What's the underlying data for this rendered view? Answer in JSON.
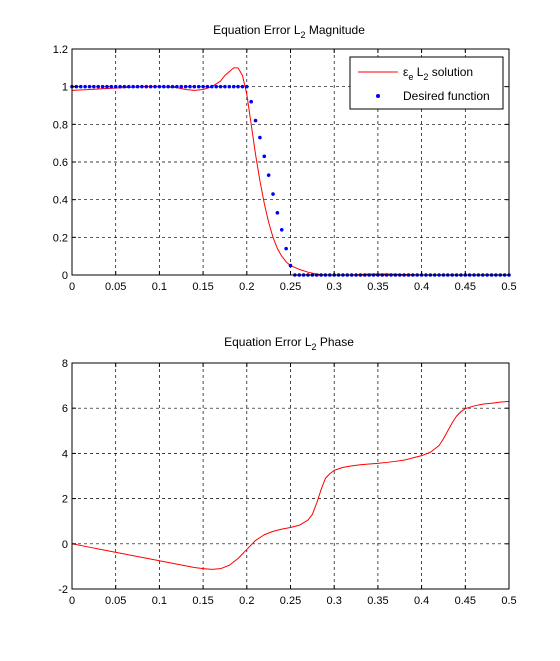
{
  "colors": {
    "solution": "#ff0000",
    "desired": "#0000ff",
    "axes": "#000000",
    "grid": "#000000",
    "background": "#ffffff"
  },
  "chart_data": [
    {
      "type": "line",
      "title": "Equation Error L2 Magnitude",
      "title_main": "Equation Error L",
      "title_sub": "2",
      "title_rest": " Magnitude",
      "xlabel": "",
      "ylabel": "",
      "xlim": [
        0,
        0.5
      ],
      "ylim": [
        0,
        1.2
      ],
      "xticks": [
        0,
        0.05,
        0.1,
        0.15,
        0.2,
        0.25,
        0.3,
        0.35,
        0.4,
        0.45,
        0.5
      ],
      "xtick_labels": [
        "0",
        "0.05",
        "0.1",
        "0.15",
        "0.2",
        "0.25",
        "0.3",
        "0.35",
        "0.4",
        "0.45",
        "0.5"
      ],
      "yticks": [
        0,
        0.2,
        0.4,
        0.6,
        0.8,
        1,
        1.2
      ],
      "ytick_labels": [
        "0",
        "0.2",
        "0.4",
        "0.6",
        "0.8",
        "1",
        "1.2"
      ],
      "grid": true,
      "grid_style": "dashed",
      "legend_position": "top-right",
      "legend": [
        {
          "main": "ε",
          "sub": "e",
          "rest1": " L",
          "sub2": "2",
          "rest2": " solution",
          "marker": "line"
        },
        {
          "main": "Desired function",
          "marker": "dot"
        }
      ],
      "series": [
        {
          "name": "εe L2 solution",
          "style": "line",
          "x": [
            0,
            0.02,
            0.04,
            0.06,
            0.08,
            0.1,
            0.12,
            0.13,
            0.14,
            0.15,
            0.16,
            0.17,
            0.175,
            0.18,
            0.185,
            0.19,
            0.195,
            0.2,
            0.205,
            0.21,
            0.215,
            0.22,
            0.225,
            0.23,
            0.235,
            0.24,
            0.245,
            0.25,
            0.26,
            0.27,
            0.28,
            0.29,
            0.3,
            0.32,
            0.34,
            0.36,
            0.38,
            0.4,
            0.42,
            0.44,
            0.46,
            0.48,
            0.5
          ],
          "y": [
            0.98,
            0.985,
            0.99,
            0.995,
            1.0,
            1.0,
            0.995,
            0.985,
            0.98,
            0.985,
            1.0,
            1.03,
            1.06,
            1.08,
            1.1,
            1.1,
            1.06,
            0.96,
            0.8,
            0.64,
            0.5,
            0.38,
            0.28,
            0.2,
            0.14,
            0.1,
            0.07,
            0.05,
            0.03,
            0.015,
            0.005,
            0.0,
            0.0,
            0.0,
            0.005,
            0.005,
            0.003,
            0.0,
            0.0,
            0.0,
            0.0,
            0.0,
            0.0
          ]
        },
        {
          "name": "Desired function",
          "style": "dots",
          "x": [
            0.0,
            0.005,
            0.01,
            0.015,
            0.02,
            0.025,
            0.03,
            0.035,
            0.04,
            0.045,
            0.05,
            0.055,
            0.06,
            0.065,
            0.07,
            0.075,
            0.08,
            0.085,
            0.09,
            0.095,
            0.1,
            0.105,
            0.11,
            0.115,
            0.12,
            0.125,
            0.13,
            0.135,
            0.14,
            0.145,
            0.15,
            0.155,
            0.16,
            0.165,
            0.17,
            0.175,
            0.18,
            0.185,
            0.19,
            0.195,
            0.2,
            0.205,
            0.21,
            0.215,
            0.22,
            0.225,
            0.23,
            0.235,
            0.24,
            0.245,
            0.25,
            0.255,
            0.26,
            0.265,
            0.27,
            0.275,
            0.28,
            0.285,
            0.29,
            0.295,
            0.3,
            0.305,
            0.31,
            0.315,
            0.32,
            0.325,
            0.33,
            0.335,
            0.34,
            0.345,
            0.35,
            0.355,
            0.36,
            0.365,
            0.37,
            0.375,
            0.38,
            0.385,
            0.39,
            0.395,
            0.4,
            0.405,
            0.41,
            0.415,
            0.42,
            0.425,
            0.43,
            0.435,
            0.44,
            0.445,
            0.45,
            0.455,
            0.46,
            0.465,
            0.47,
            0.475,
            0.48,
            0.485,
            0.49,
            0.495,
            0.5
          ],
          "y": [
            1,
            1,
            1,
            1,
            1,
            1,
            1,
            1,
            1,
            1,
            1,
            1,
            1,
            1,
            1,
            1,
            1,
            1,
            1,
            1,
            1,
            1,
            1,
            1,
            1,
            1,
            1,
            1,
            1,
            1,
            1,
            1,
            1,
            1,
            1,
            1,
            1,
            1,
            1,
            1,
            1,
            0.92,
            0.82,
            0.73,
            0.63,
            0.53,
            0.43,
            0.33,
            0.24,
            0.14,
            0.05,
            0,
            0,
            0,
            0,
            0,
            0,
            0,
            0,
            0,
            0,
            0,
            0,
            0,
            0,
            0,
            0,
            0,
            0,
            0,
            0,
            0,
            0,
            0,
            0,
            0,
            0,
            0,
            0,
            0,
            0,
            0,
            0,
            0,
            0,
            0,
            0,
            0,
            0,
            0,
            0,
            0,
            0,
            0,
            0,
            0,
            0,
            0,
            0,
            0,
            0
          ]
        }
      ]
    },
    {
      "type": "line",
      "title": "Equation Error L2 Phase",
      "title_main": "Equation Error L",
      "title_sub": "2",
      "title_rest": " Phase",
      "xlabel": "",
      "ylabel": "",
      "xlim": [
        0,
        0.5
      ],
      "ylim": [
        -2,
        8
      ],
      "xticks": [
        0,
        0.05,
        0.1,
        0.15,
        0.2,
        0.25,
        0.3,
        0.35,
        0.4,
        0.45,
        0.5
      ],
      "xtick_labels": [
        "0",
        "0.05",
        "0.1",
        "0.15",
        "0.2",
        "0.25",
        "0.3",
        "0.35",
        "0.4",
        "0.45",
        "0.5"
      ],
      "yticks": [
        -2,
        0,
        2,
        4,
        6,
        8
      ],
      "ytick_labels": [
        "-2",
        "0",
        "2",
        "4",
        "6",
        "8"
      ],
      "grid": true,
      "grid_style": "dashed",
      "series": [
        {
          "name": "",
          "style": "line",
          "x": [
            0,
            0.02,
            0.04,
            0.06,
            0.08,
            0.1,
            0.12,
            0.14,
            0.15,
            0.16,
            0.17,
            0.18,
            0.19,
            0.2,
            0.21,
            0.22,
            0.23,
            0.24,
            0.25,
            0.26,
            0.27,
            0.275,
            0.28,
            0.285,
            0.29,
            0.295,
            0.3,
            0.31,
            0.32,
            0.33,
            0.34,
            0.35,
            0.36,
            0.37,
            0.38,
            0.39,
            0.4,
            0.41,
            0.42,
            0.425,
            0.43,
            0.435,
            0.44,
            0.445,
            0.45,
            0.46,
            0.47,
            0.48,
            0.49,
            0.5
          ],
          "y": [
            0,
            -0.15,
            -0.3,
            -0.45,
            -0.6,
            -0.75,
            -0.9,
            -1.05,
            -1.1,
            -1.13,
            -1.1,
            -0.95,
            -0.65,
            -0.25,
            0.15,
            0.4,
            0.55,
            0.65,
            0.72,
            0.82,
            1.05,
            1.3,
            1.8,
            2.4,
            2.9,
            3.1,
            3.25,
            3.38,
            3.45,
            3.5,
            3.53,
            3.56,
            3.6,
            3.65,
            3.7,
            3.8,
            3.9,
            4.05,
            4.35,
            4.65,
            5.0,
            5.35,
            5.65,
            5.85,
            5.98,
            6.1,
            6.18,
            6.22,
            6.27,
            6.3
          ]
        }
      ]
    }
  ]
}
